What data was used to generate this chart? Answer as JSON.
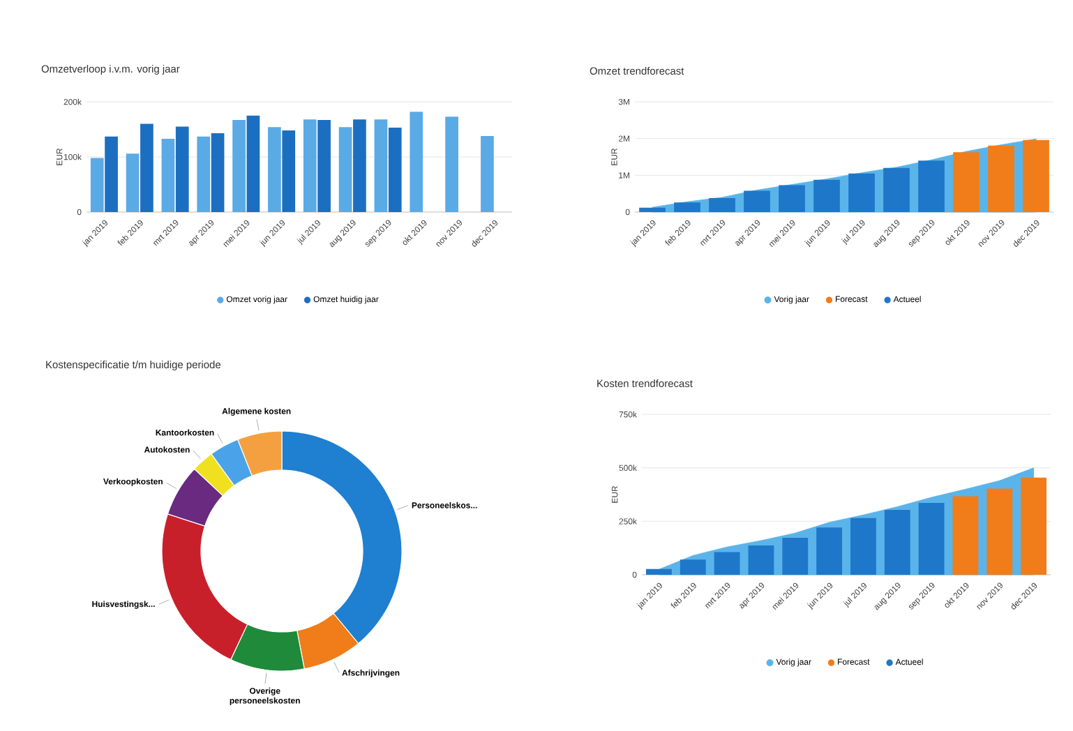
{
  "chart_data": [
    {
      "type": "bar",
      "title": "Omzetverloop i.v.m. vorig jaar",
      "ylabel": "EUR",
      "categories": [
        "jan 2019",
        "feb 2019",
        "mrt 2019",
        "apr 2019",
        "mei 2019",
        "jun 2019",
        "jul 2019",
        "aug 2019",
        "sep 2019",
        "okt 2019",
        "nov 2019",
        "dec 2019"
      ],
      "series": [
        {
          "name": "Omzet vorig jaar",
          "color": "#5aaae6",
          "values": [
            98000,
            106000,
            133000,
            137000,
            167000,
            154000,
            168000,
            154000,
            168000,
            182000,
            173000,
            138000
          ]
        },
        {
          "name": "Omzet huidig jaar",
          "color": "#1c6fc0",
          "values": [
            137000,
            160000,
            155000,
            143000,
            175000,
            148000,
            167000,
            168000,
            153000,
            null,
            null,
            null
          ]
        }
      ],
      "ylim": [
        0,
        200000
      ],
      "yticks": [
        0,
        {
          "value": 100000,
          "label": "100k"
        },
        {
          "value": 200000,
          "label": "200k"
        }
      ],
      "grid": "y",
      "legend": "bottom"
    },
    {
      "type": "bar",
      "title": "Omzet trendforecast",
      "ylabel": "EUR",
      "categories": [
        "jan 2019",
        "feb 2019",
        "mrt 2019",
        "apr 2019",
        "mei 2019",
        "jun 2019",
        "jul 2019",
        "aug 2019",
        "sep 2019",
        "okt 2019",
        "nov 2019",
        "dec 2019"
      ],
      "series": [
        {
          "name": "Vorig jaar",
          "type": "area",
          "color": "#5ab4ea",
          "values": [
            130000,
            280000,
            400000,
            600000,
            750000,
            900000,
            1070000,
            1220000,
            1420000,
            1650000,
            1830000,
            1990000
          ]
        },
        {
          "name": "Forecast",
          "color": "#f07d19",
          "values": [
            null,
            null,
            null,
            null,
            null,
            null,
            null,
            null,
            null,
            1630000,
            1810000,
            1960000
          ]
        },
        {
          "name": "Actueel",
          "color": "#1f77c9",
          "values": [
            120000,
            260000,
            380000,
            580000,
            730000,
            880000,
            1050000,
            1200000,
            1400000,
            null,
            null,
            null
          ]
        }
      ],
      "ylim": [
        0,
        3000000
      ],
      "yticks": [
        0,
        {
          "value": 1000000,
          "label": "1M"
        },
        {
          "value": 2000000,
          "label": "2M"
        },
        {
          "value": 3000000,
          "label": "3M"
        }
      ],
      "grid": "y",
      "legend": "bottom"
    },
    {
      "type": "donut",
      "title": "Kostenspecificatie t/m huidige periode",
      "categories": [
        "Personeelskos...",
        "Afschrijvingen",
        "Overige personeelskosten",
        "Huisvestingsk...",
        "Verkoopkosten",
        "Autokosten",
        "Kantoorkosten",
        "Algemene kosten"
      ],
      "values": [
        39,
        8,
        10,
        23,
        7,
        3,
        4,
        6
      ],
      "colors": [
        "#1f7fd0",
        "#f07c1a",
        "#1e8a3a",
        "#c8202a",
        "#6a2a80",
        "#f0e020",
        "#4aa3e8",
        "#f5a040"
      ]
    },
    {
      "type": "bar",
      "title": "Kosten trendforecast",
      "ylabel": "EUR",
      "categories": [
        "jan 2019",
        "feb 2019",
        "mrt 2019",
        "apr 2019",
        "mei 2019",
        "jun 2019",
        "jul 2019",
        "aug 2019",
        "sep 2019",
        "okt 2019",
        "nov 2019",
        "dec 2019"
      ],
      "series": [
        {
          "name": "Vorig jaar",
          "type": "area",
          "color": "#5ab4ea",
          "values": [
            25000,
            90000,
            130000,
            160000,
            195000,
            245000,
            280000,
            318000,
            362000,
            400000,
            440000,
            500000
          ]
        },
        {
          "name": "Forecast",
          "color": "#f07d19",
          "values": [
            null,
            null,
            null,
            null,
            null,
            null,
            null,
            null,
            null,
            367000,
            403000,
            454000
          ]
        },
        {
          "name": "Actueel",
          "color": "#1f77c9",
          "values": [
            27000,
            71000,
            106000,
            137000,
            173000,
            221000,
            265000,
            303000,
            336000,
            null,
            null,
            null
          ]
        }
      ],
      "ylim": [
        0,
        750000
      ],
      "yticks": [
        0,
        {
          "value": 250000,
          "label": "250k"
        },
        {
          "value": 500000,
          "label": "500k"
        },
        {
          "value": 750000,
          "label": "750k"
        }
      ],
      "grid": "y",
      "legend": "bottom"
    }
  ]
}
